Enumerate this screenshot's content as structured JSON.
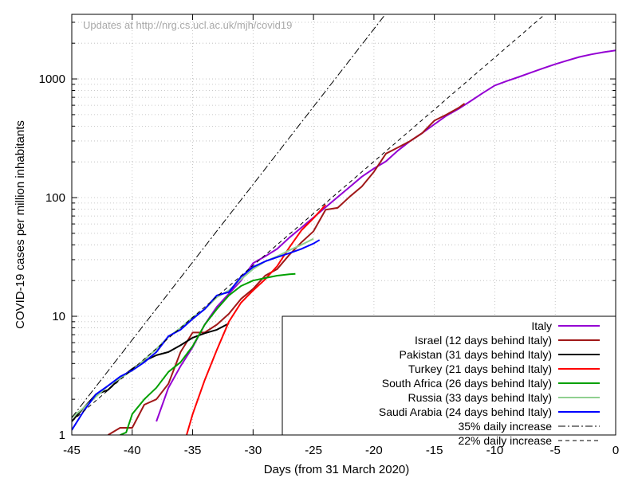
{
  "chart_data": {
    "type": "line",
    "title": "",
    "annotation": "Updates at http://nrg.cs.ucl.ac.uk/mjh/covid19",
    "xlabel": "Days (from 31 March 2020)",
    "ylabel": "COVID-19 cases per million inhabitants",
    "xlim": [
      -45,
      0
    ],
    "ylim": [
      1,
      3500
    ],
    "yscale": "log",
    "grid": true,
    "legend_position": "bottom-right",
    "x_ticks": [
      {
        "value": -45,
        "label": "-45"
      },
      {
        "value": -40,
        "label": "-40"
      },
      {
        "value": -35,
        "label": "-35"
      },
      {
        "value": -30,
        "label": "-30"
      },
      {
        "value": -25,
        "label": "-25"
      },
      {
        "value": -20,
        "label": "-20"
      },
      {
        "value": -15,
        "label": "-15"
      },
      {
        "value": -10,
        "label": "-10"
      },
      {
        "value": -5,
        "label": "-5"
      },
      {
        "value": 0,
        "label": "0"
      }
    ],
    "y_ticks": [
      {
        "value": 1,
        "label": "1"
      },
      {
        "value": 10,
        "label": "10"
      },
      {
        "value": 100,
        "label": "100"
      },
      {
        "value": 1000,
        "label": "1000"
      }
    ],
    "series": [
      {
        "name": "Italy",
        "color": "#9400d3",
        "dash": "",
        "x": [
          -38,
          -37,
          -36,
          -35,
          -34,
          -33,
          -32,
          -31,
          -30,
          -29,
          -28,
          -27,
          -26,
          -25,
          -24,
          -23,
          -22,
          -21,
          -20,
          -19,
          -18,
          -17,
          -16,
          -15,
          -14,
          -13,
          -12,
          -11,
          -10,
          -9,
          -8,
          -7,
          -6,
          -5,
          -4,
          -3,
          -2,
          -1,
          0
        ],
        "y": [
          1.3,
          2.5,
          3.8,
          5.5,
          8.5,
          12,
          15.5,
          20,
          28,
          32,
          37,
          46,
          56,
          68,
          83,
          101,
          123,
          150,
          176,
          202,
          250,
          300,
          350,
          415,
          490,
          560,
          650,
          760,
          880,
          960,
          1040,
          1130,
          1230,
          1330,
          1430,
          1530,
          1610,
          1680,
          1740
        ]
      },
      {
        "name": "Israel (12 days behind Italy)",
        "color": "#a01818",
        "dash": "",
        "x": [
          -42,
          -41,
          -40,
          -39,
          -38,
          -37,
          -36,
          -35,
          -34,
          -33,
          -32,
          -31,
          -30,
          -29,
          -28,
          -27,
          -26,
          -25,
          -24,
          -23,
          -22,
          -21,
          -20,
          -19,
          -18,
          -17,
          -16,
          -15,
          -14,
          -13,
          -12.5
        ],
        "y": [
          1,
          1.15,
          1.15,
          1.8,
          2.0,
          2.7,
          5.0,
          7.3,
          7.3,
          8.5,
          10.5,
          14,
          17,
          22,
          25,
          33,
          42,
          52,
          79,
          82,
          102,
          124,
          165,
          235,
          265,
          300,
          350,
          445,
          500,
          570,
          620
        ]
      },
      {
        "name": "Pakistan (31 days behind Italy)",
        "color": "#000000",
        "dash": "",
        "x": [
          -45,
          -44,
          -43,
          -42,
          -41,
          -40,
          -39,
          -38,
          -37,
          -36,
          -35,
          -34,
          -33,
          -32
        ],
        "y": [
          1.3,
          1.7,
          2.2,
          2.4,
          3.0,
          3.6,
          4.2,
          4.7,
          5.0,
          5.7,
          6.6,
          7.2,
          7.7,
          8.7
        ]
      },
      {
        "name": "Turkey (21 days behind Italy)",
        "color": "#ff0000",
        "dash": "",
        "x": [
          -35.5,
          -35,
          -34,
          -33,
          -32,
          -31,
          -30,
          -29,
          -28,
          -27,
          -26,
          -25,
          -24
        ],
        "y": [
          1,
          1.5,
          2.9,
          5.2,
          9.0,
          13,
          16.5,
          20.5,
          26.5,
          38,
          53,
          67,
          87
        ]
      },
      {
        "name": "South Africa (26 days behind Italy)",
        "color": "#00a000",
        "dash": "",
        "x": [
          -41,
          -40.5,
          -40,
          -39,
          -38,
          -37,
          -36,
          -35,
          -34,
          -33,
          -32,
          -31,
          -30,
          -29,
          -28,
          -27,
          -26.5
        ],
        "y": [
          1,
          1.05,
          1.5,
          2.0,
          2.5,
          3.4,
          4.1,
          5.6,
          8.5,
          11.5,
          15,
          18,
          20,
          21,
          22,
          22.6,
          22.8
        ]
      },
      {
        "name": "Russia (33 days behind Italy)",
        "color": "#90d090",
        "dash": "",
        "x": [
          -45,
          -44,
          -43,
          -42,
          -41,
          -40,
          -39,
          -38,
          -37,
          -36,
          -35,
          -34,
          -33,
          -32,
          -31,
          -30,
          -29,
          -28,
          -27,
          -26,
          -25
        ],
        "y": [
          1.4,
          1.7,
          2.1,
          2.6,
          3.0,
          3.5,
          4.3,
          5.3,
          6.7,
          8.0,
          9.8,
          11.5,
          14.5,
          16.5,
          20.5,
          25,
          29,
          32,
          36,
          40,
          45
        ]
      },
      {
        "name": "Saudi Arabia (24 days behind Italy)",
        "color": "#0000ff",
        "dash": "",
        "x": [
          -45,
          -44,
          -43,
          -42,
          -41,
          -40,
          -39,
          -38,
          -37,
          -36,
          -35,
          -34,
          -33,
          -32,
          -31,
          -30,
          -29,
          -28,
          -27,
          -26,
          -25,
          -24.5
        ],
        "y": [
          1.1,
          1.6,
          2.2,
          2.6,
          3.1,
          3.5,
          4.1,
          5.0,
          6.8,
          7.7,
          9.5,
          11.5,
          15,
          16,
          21.5,
          26,
          29,
          31.5,
          34,
          37,
          41,
          44
        ]
      },
      {
        "name": "35% daily increase",
        "color": "#000000",
        "dash": "9,3,2,3",
        "x": [
          -45,
          -17
        ],
        "y": [
          1.4,
          6510
        ]
      },
      {
        "name": "22% daily increase",
        "color": "#000000",
        "dash": "5,4",
        "x": [
          -45,
          -6
        ],
        "y": [
          1.3,
          3400
        ]
      }
    ]
  }
}
